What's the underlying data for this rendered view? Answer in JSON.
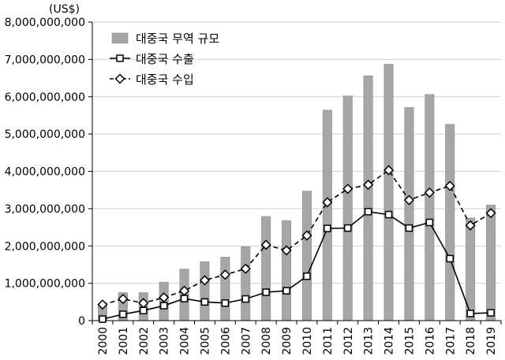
{
  "chart_data": {
    "type": "bar",
    "unit_label": "(US$)",
    "categories": [
      "2000",
      "2001",
      "2002",
      "2003",
      "2004",
      "2005",
      "2006",
      "2007",
      "2008",
      "2009",
      "2010",
      "2011",
      "2012",
      "2013",
      "2014",
      "2015",
      "2016",
      "2017",
      "2018",
      "2019"
    ],
    "y_ticks": [
      "0",
      "1,000,000,000",
      "2,000,000,000",
      "3,000,000,000",
      "4,000,000,000",
      "5,000,000,000",
      "6,000,000,000",
      "7,000,000,000",
      "8,000,000,000"
    ],
    "ylim": [
      0,
      8000000000
    ],
    "grid": true,
    "legend_position": "top-left",
    "series": [
      {
        "name": "대중국 무역 규모",
        "kind": "bar",
        "color": "#a6a6a6",
        "values": [
          450000000,
          750000000,
          750000000,
          1030000000,
          1380000000,
          1580000000,
          1700000000,
          1980000000,
          2790000000,
          2680000000,
          3470000000,
          5640000000,
          6020000000,
          6560000000,
          6870000000,
          5710000000,
          6060000000,
          5260000000,
          2750000000,
          3100000000
        ]
      },
      {
        "name": "대중국 수출",
        "kind": "line",
        "marker": "square",
        "dash": "solid",
        "color": "#000000",
        "values": [
          40000000,
          170000000,
          270000000,
          400000000,
          590000000,
          500000000,
          470000000,
          580000000,
          760000000,
          800000000,
          1190000000,
          2470000000,
          2480000000,
          2920000000,
          2840000000,
          2480000000,
          2630000000,
          1660000000,
          190000000,
          210000000
        ]
      },
      {
        "name": "대중국 수입",
        "kind": "line",
        "marker": "diamond",
        "dash": "dashed",
        "color": "#000000",
        "values": [
          430000000,
          580000000,
          470000000,
          620000000,
          800000000,
          1080000000,
          1230000000,
          1390000000,
          2030000000,
          1880000000,
          2280000000,
          3170000000,
          3530000000,
          3640000000,
          4030000000,
          3230000000,
          3430000000,
          3610000000,
          2550000000,
          2880000000
        ]
      }
    ]
  }
}
